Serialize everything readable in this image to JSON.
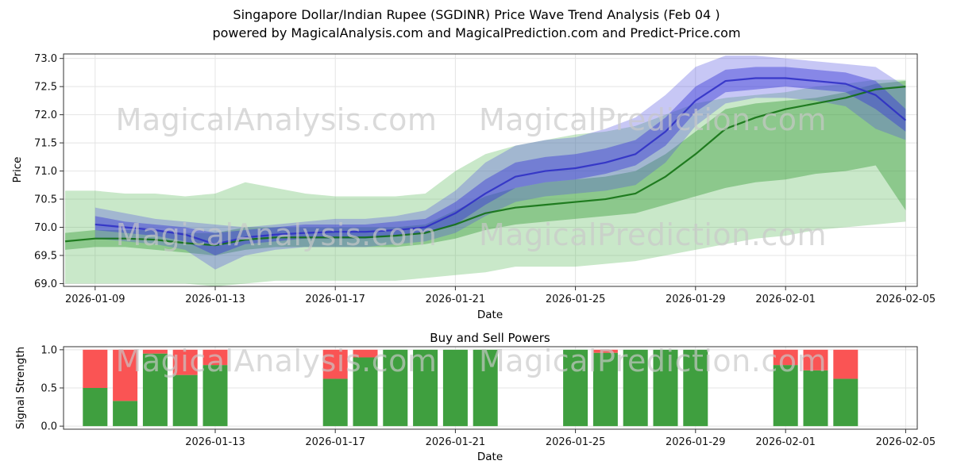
{
  "title": {
    "line1": "Singapore Dollar/Indian Rupee (SGDINR) Price Wave Trend Analysis (Feb 04 )",
    "line2": "powered by MagicalAnalysis.com and MagicalPrediction.com and Predict-Price.com"
  },
  "watermarks": {
    "analysis": "MagicalAnalysis.com",
    "prediction": "MagicalPrediction.com"
  },
  "chart_data": [
    {
      "type": "area",
      "name": "price-wave-trend",
      "ylabel": "Price",
      "xlabel": "Date",
      "ylim": [
        68.95,
        73.08
      ],
      "y_ticks": [
        69.0,
        69.5,
        70.0,
        70.5,
        71.0,
        71.5,
        72.0,
        72.5,
        73.0
      ],
      "x_ticks": [
        "2026-01-09",
        "2026-01-13",
        "2026-01-17",
        "2026-01-21",
        "2026-01-25",
        "2026-01-29",
        "2026-02-01",
        "2026-02-05"
      ],
      "x_dates": [
        "2026-01-08",
        "2026-01-09",
        "2026-01-10",
        "2026-01-11",
        "2026-01-12",
        "2026-01-13",
        "2026-01-14",
        "2026-01-15",
        "2026-01-16",
        "2026-01-17",
        "2026-01-18",
        "2026-01-19",
        "2026-01-20",
        "2026-01-21",
        "2026-01-22",
        "2026-01-23",
        "2026-01-24",
        "2026-01-25",
        "2026-01-26",
        "2026-01-27",
        "2026-01-28",
        "2026-01-29",
        "2026-01-30",
        "2026-01-31",
        "2026-02-01",
        "2026-02-02",
        "2026-02-03",
        "2026-02-04",
        "2026-02-05"
      ],
      "bands": [
        {
          "name": "green-outer",
          "color": "#5cb85c",
          "opacity": 0.33,
          "upper": [
            70.65,
            70.65,
            70.6,
            70.6,
            70.55,
            70.6,
            70.8,
            70.7,
            70.6,
            70.55,
            70.55,
            70.55,
            70.6,
            71.0,
            71.3,
            71.45,
            71.55,
            71.65,
            71.7,
            71.8,
            72.0,
            72.2,
            72.3,
            72.35,
            72.4,
            72.5,
            72.55,
            72.62,
            72.62
          ],
          "lower": [
            69.0,
            69.0,
            69.0,
            69.0,
            69.0,
            68.95,
            69.0,
            69.05,
            69.05,
            69.05,
            69.05,
            69.05,
            69.1,
            69.15,
            69.2,
            69.3,
            69.3,
            69.3,
            69.35,
            69.4,
            69.5,
            69.6,
            69.7,
            69.8,
            69.85,
            69.95,
            70.0,
            70.05,
            70.1
          ]
        },
        {
          "name": "green-inner",
          "color": "#3a9a3a",
          "opacity": 0.42,
          "upper": [
            69.9,
            69.95,
            69.95,
            69.95,
            69.9,
            69.9,
            70.0,
            70.0,
            70.0,
            70.0,
            70.0,
            70.0,
            70.05,
            70.3,
            70.55,
            70.7,
            70.8,
            70.85,
            70.9,
            71.0,
            71.3,
            71.7,
            72.1,
            72.2,
            72.25,
            72.3,
            72.4,
            72.55,
            72.6
          ],
          "lower": [
            69.6,
            69.65,
            69.65,
            69.6,
            69.55,
            69.5,
            69.6,
            69.65,
            69.65,
            69.65,
            69.65,
            69.65,
            69.7,
            69.8,
            69.95,
            70.05,
            70.1,
            70.15,
            70.2,
            70.25,
            70.4,
            70.55,
            70.7,
            70.8,
            70.85,
            70.95,
            71.0,
            71.1,
            70.3
          ]
        },
        {
          "name": "blue-outer",
          "color": "#5050e0",
          "opacity": 0.32,
          "upper": [
            null,
            70.35,
            70.25,
            70.15,
            70.1,
            70.05,
            70.0,
            70.05,
            70.1,
            70.15,
            70.15,
            70.2,
            70.3,
            70.65,
            71.15,
            71.45,
            71.55,
            71.6,
            71.75,
            71.95,
            72.35,
            72.85,
            73.05,
            73.05,
            73.0,
            72.95,
            72.9,
            72.85,
            72.5
          ],
          "lower": [
            null,
            69.8,
            69.75,
            69.7,
            69.6,
            69.25,
            69.5,
            69.6,
            69.65,
            69.65,
            69.65,
            69.7,
            69.75,
            69.9,
            70.2,
            70.45,
            70.55,
            70.6,
            70.65,
            70.75,
            71.15,
            71.8,
            72.2,
            72.3,
            72.3,
            72.25,
            72.15,
            71.75,
            71.55
          ]
        },
        {
          "name": "blue-inner",
          "color": "#3a3ad8",
          "opacity": 0.45,
          "upper": [
            null,
            70.2,
            70.1,
            70.05,
            70.0,
            69.9,
            69.95,
            70.0,
            70.05,
            70.05,
            70.05,
            70.1,
            70.15,
            70.45,
            70.85,
            71.15,
            71.25,
            71.3,
            71.4,
            71.55,
            71.95,
            72.5,
            72.8,
            72.85,
            72.85,
            72.8,
            72.75,
            72.6,
            72.1
          ],
          "lower": [
            null,
            69.95,
            69.9,
            69.85,
            69.75,
            69.5,
            69.7,
            69.75,
            69.8,
            69.8,
            69.8,
            69.85,
            69.9,
            70.05,
            70.4,
            70.7,
            70.8,
            70.85,
            70.95,
            71.1,
            71.45,
            72.05,
            72.4,
            72.45,
            72.5,
            72.45,
            72.4,
            72.1,
            71.7
          ]
        }
      ],
      "lines": [
        {
          "name": "green-trend",
          "color": "#0c6d0c",
          "width": 2.2,
          "values": [
            69.75,
            69.8,
            69.8,
            69.78,
            69.72,
            69.68,
            69.78,
            69.82,
            69.82,
            69.82,
            69.82,
            69.85,
            69.9,
            70.05,
            70.25,
            70.35,
            70.4,
            70.45,
            70.5,
            70.6,
            70.9,
            71.3,
            71.75,
            71.95,
            72.1,
            72.2,
            72.3,
            72.45,
            72.5
          ]
        },
        {
          "name": "blue-trend",
          "color": "#2b2bc4",
          "width": 2.2,
          "values": [
            null,
            70.05,
            70.0,
            69.95,
            69.87,
            69.7,
            69.82,
            69.87,
            69.9,
            69.92,
            69.92,
            69.95,
            70.0,
            70.25,
            70.6,
            70.9,
            71.0,
            71.05,
            71.15,
            71.3,
            71.7,
            72.25,
            72.6,
            72.65,
            72.65,
            72.6,
            72.55,
            72.35,
            71.9
          ]
        }
      ]
    },
    {
      "type": "bar",
      "name": "buy-sell-powers",
      "stacked": true,
      "title": "Buy and Sell Powers",
      "ylabel": "Signal Strength",
      "xlabel": "Date",
      "ylim": [
        -0.04,
        1.04
      ],
      "y_ticks": [
        0.0,
        0.5,
        1.0
      ],
      "x_ticks": [
        "2026-01-13",
        "2026-01-17",
        "2026-01-21",
        "2026-01-25",
        "2026-01-29",
        "2026-02-01",
        "2026-02-05"
      ],
      "buy_color": "#3f9f3f",
      "sell_color": "#fa5454",
      "bars": [
        {
          "date": "2026-01-09",
          "buy": 0.5,
          "sell": 0.5
        },
        {
          "date": "2026-01-10",
          "buy": 0.33,
          "sell": 0.67
        },
        {
          "date": "2026-01-11",
          "buy": 0.95,
          "sell": 0.05
        },
        {
          "date": "2026-01-12",
          "buy": 0.67,
          "sell": 0.33
        },
        {
          "date": "2026-01-13",
          "buy": 0.8,
          "sell": 0.2
        },
        {
          "date": "2026-01-17",
          "buy": 0.62,
          "sell": 0.38
        },
        {
          "date": "2026-01-18",
          "buy": 0.9,
          "sell": 0.1
        },
        {
          "date": "2026-01-19",
          "buy": 1.0,
          "sell": 0.0
        },
        {
          "date": "2026-01-20",
          "buy": 1.0,
          "sell": 0.0
        },
        {
          "date": "2026-01-21",
          "buy": 1.0,
          "sell": 0.0
        },
        {
          "date": "2026-01-22",
          "buy": 1.0,
          "sell": 0.0
        },
        {
          "date": "2026-01-25",
          "buy": 1.0,
          "sell": 0.0
        },
        {
          "date": "2026-01-26",
          "buy": 0.96,
          "sell": 0.04
        },
        {
          "date": "2026-01-27",
          "buy": 1.0,
          "sell": 0.0
        },
        {
          "date": "2026-01-28",
          "buy": 1.0,
          "sell": 0.0
        },
        {
          "date": "2026-01-29",
          "buy": 1.0,
          "sell": 0.0
        },
        {
          "date": "2026-02-01",
          "buy": 0.8,
          "sell": 0.2
        },
        {
          "date": "2026-02-02",
          "buy": 0.73,
          "sell": 0.27
        },
        {
          "date": "2026-02-03",
          "buy": 0.62,
          "sell": 0.38
        }
      ]
    }
  ]
}
